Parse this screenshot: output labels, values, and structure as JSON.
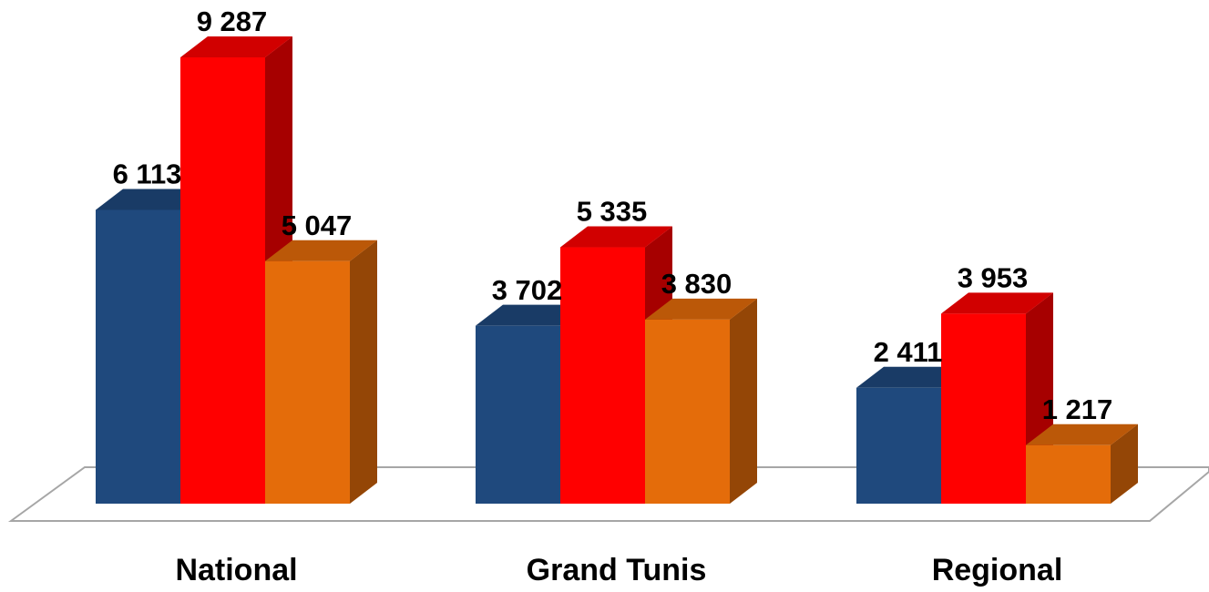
{
  "chart_data": {
    "type": "bar3d",
    "categories": [
      "National",
      "Grand Tunis",
      "Regional"
    ],
    "series": [
      {
        "color": "#1f497d",
        "values": [
          6113,
          3702,
          2411
        ],
        "value_labels": [
          "6 113",
          "3 702",
          "2 411"
        ]
      },
      {
        "color": "#ff0000",
        "values": [
          9287,
          5335,
          3953
        ],
        "value_labels": [
          "9 287",
          "5 335",
          "3 953"
        ]
      },
      {
        "color": "#e46c0a",
        "values": [
          5047,
          3830,
          1217
        ],
        "value_labels": [
          "5 047",
          "3 830",
          "1 217"
        ]
      }
    ]
  }
}
